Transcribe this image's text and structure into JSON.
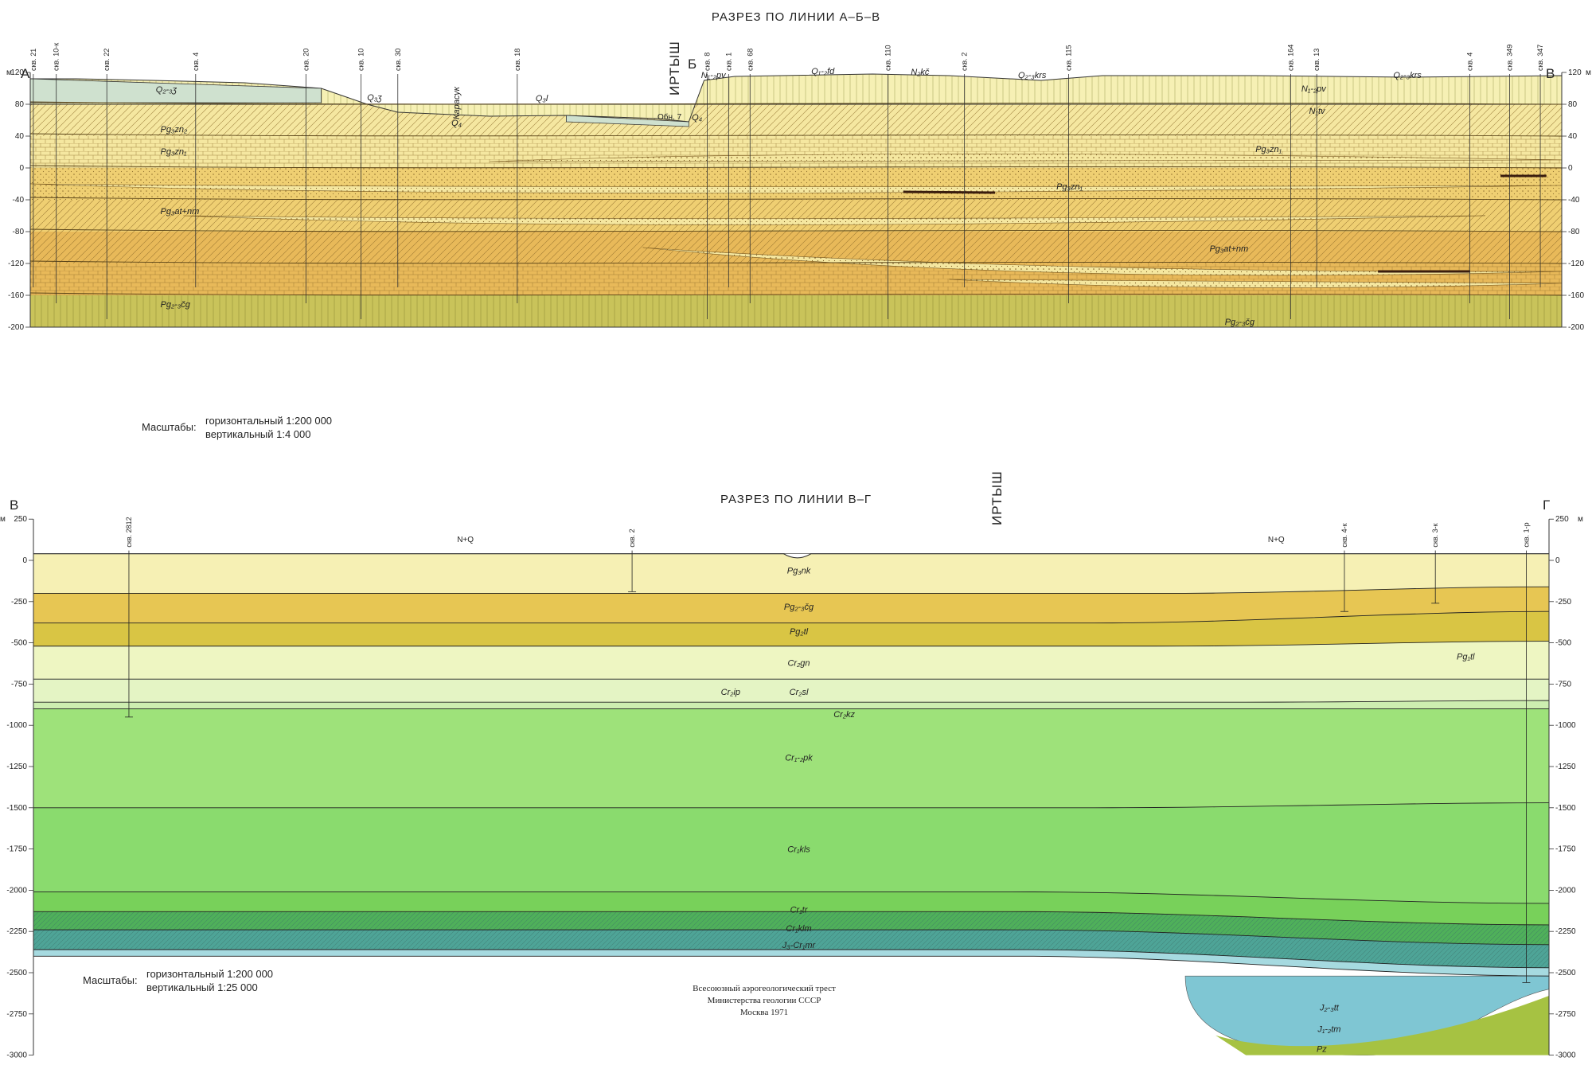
{
  "section1": {
    "title": "РАЗРЕЗ ПО ЛИНИИ А–Б–В",
    "corner_left": "А",
    "corner_mid": "Б",
    "corner_right": "В",
    "river": "ИРТЫШ",
    "karasuk": "Карасук",
    "outcrop": "Обн. 7",
    "unit_left": "м",
    "unit_right": "м",
    "ticks": [
      {
        "v": 120,
        "l": "120"
      },
      {
        "v": 80,
        "l": "80"
      },
      {
        "v": 40,
        "l": "40"
      },
      {
        "v": 0,
        "l": "0"
      },
      {
        "v": -40,
        "l": "-40"
      },
      {
        "v": -80,
        "l": "-80"
      },
      {
        "v": -120,
        "l": "-120"
      },
      {
        "v": -160,
        "l": "-160"
      },
      {
        "v": -200,
        "l": "-200"
      }
    ],
    "boreholes": [
      {
        "label": "скв. 21",
        "x": 0.2
      },
      {
        "label": "скв. 10-к",
        "x": 1.7
      },
      {
        "label": "скв. 22",
        "x": 5.0
      },
      {
        "label": "скв. 4",
        "x": 10.8
      },
      {
        "label": "скв. 20",
        "x": 18.0
      },
      {
        "label": "скв. 10",
        "x": 21.6
      },
      {
        "label": "скв. 30",
        "x": 24.0
      },
      {
        "label": "скв. 18",
        "x": 31.8
      },
      {
        "label": "скв. 8",
        "x": 44.2
      },
      {
        "label": "скв. 1",
        "x": 45.6
      },
      {
        "label": "скв. 68",
        "x": 47.0
      },
      {
        "label": "скв. 110",
        "x": 56.0
      },
      {
        "label": "скв. 2",
        "x": 61.0
      },
      {
        "label": "скв. 115",
        "x": 67.8
      },
      {
        "label": "скв. 164",
        "x": 82.3
      },
      {
        "label": "скв. 13",
        "x": 84.0
      },
      {
        "label": "скв. 4",
        "x": 94.0
      },
      {
        "label": "скв. 349",
        "x": 96.6
      },
      {
        "label": "скв. 347",
        "x": 98.6
      }
    ],
    "formations": [
      {
        "label": "Q₂-₃ʒ",
        "x": 8.2,
        "y": 95
      },
      {
        "label": "Q₃ʒ",
        "x": 22.0,
        "y": 85
      },
      {
        "label": "Q₃l",
        "x": 33.0,
        "y": 84
      },
      {
        "label": "Q₄",
        "x": 27.5,
        "y": 53
      },
      {
        "label": "Q₄",
        "x": 43.2,
        "y": 60
      },
      {
        "label": "N₁-₂pv",
        "x": 43.8,
        "y": 113
      },
      {
        "label": "Q₁-₂fd",
        "x": 51.0,
        "y": 118
      },
      {
        "label": "N₂kč",
        "x": 57.5,
        "y": 117
      },
      {
        "label": "Q₂-₃krs",
        "x": 64.5,
        "y": 113
      },
      {
        "label": "Q₂-₃krs",
        "x": 89.0,
        "y": 113
      },
      {
        "label": "N₁-₂pv",
        "x": 83.0,
        "y": 96
      },
      {
        "label": "N₁tv",
        "x": 83.5,
        "y": 68
      },
      {
        "label": "Pg₃zn₂",
        "x": 8.5,
        "y": 45
      },
      {
        "label": "Pg₃zn₁",
        "x": 8.5,
        "y": 17
      },
      {
        "label": "Pg₃zn₁",
        "x": 80.0,
        "y": 20
      },
      {
        "label": "Pg₃zn₁",
        "x": 67.0,
        "y": -27
      },
      {
        "label": "Pg₃at+nm",
        "x": 8.5,
        "y": -58
      },
      {
        "label": "Pg₃at+nm",
        "x": 77.0,
        "y": -105
      },
      {
        "label": "Pg₂-₃čg",
        "x": 8.5,
        "y": -175
      },
      {
        "label": "Pg₂-₃čg",
        "x": 78.0,
        "y": -197
      }
    ],
    "scale_label": "Масштабы:",
    "scale_h": "горизонтальный 1:200 000",
    "scale_v": "вертикальный 1:4 000"
  },
  "section2": {
    "title": "РАЗРЕЗ ПО ЛИНИИ В–Г",
    "corner_left": "В",
    "corner_right": "Г",
    "river": "ИРТЫШ",
    "unit_left": "м",
    "unit_right": "м",
    "ticks": [
      {
        "v": 250,
        "l": "250"
      },
      {
        "v": 0,
        "l": "0"
      },
      {
        "v": -250,
        "l": "-250"
      },
      {
        "v": -500,
        "l": "-500"
      },
      {
        "v": -750,
        "l": "-750"
      },
      {
        "v": -1000,
        "l": "-1000"
      },
      {
        "v": -1250,
        "l": "-1250"
      },
      {
        "v": -1500,
        "l": "-1500"
      },
      {
        "v": -1750,
        "l": "-1750"
      },
      {
        "v": -2000,
        "l": "-2000"
      },
      {
        "v": -2250,
        "l": "-2250"
      },
      {
        "v": -2500,
        "l": "-2500"
      },
      {
        "v": -2750,
        "l": "-2750"
      },
      {
        "v": -3000,
        "l": "-3000"
      }
    ],
    "boreholes": [
      {
        "label": "скв. 2812",
        "x": 6.3
      },
      {
        "label": "скв. 2",
        "x": 39.5
      },
      {
        "label": "скв. 4-к",
        "x": 86.5
      },
      {
        "label": "скв. 3-к",
        "x": 92.5
      },
      {
        "label": "скв. 1-р",
        "x": 98.5
      }
    ],
    "surface_labels": [
      {
        "label": "N+Q",
        "x": 28.5
      },
      {
        "label": "N+Q",
        "x": 82.0
      }
    ],
    "formations": [
      {
        "label": "Pg₃nk",
        "x": 50.5,
        "y": -80
      },
      {
        "label": "Pg₂-₃čg",
        "x": 50.5,
        "y": -300
      },
      {
        "label": "Pg₂tl",
        "x": 50.5,
        "y": -450
      },
      {
        "label": "Pg₁tl",
        "x": 94.5,
        "y": -600
      },
      {
        "label": "Cr₂gn",
        "x": 50.5,
        "y": -640
      },
      {
        "label": "Cr₂ip",
        "x": 46.0,
        "y": -815
      },
      {
        "label": "Cr₂sl",
        "x": 50.5,
        "y": -815
      },
      {
        "label": "Cr₂kz",
        "x": 53.5,
        "y": -950
      },
      {
        "label": "Cr₁-₂pk",
        "x": 50.5,
        "y": -1215
      },
      {
        "label": "Cr₁kls",
        "x": 50.5,
        "y": -1770
      },
      {
        "label": "Cr₁tr",
        "x": 50.5,
        "y": -2135
      },
      {
        "label": "Cr₁klm",
        "x": 50.5,
        "y": -2250
      },
      {
        "label": "J₃-Cr₁mr",
        "x": 50.5,
        "y": -2350
      },
      {
        "label": "J₂-₃tt",
        "x": 85.5,
        "y": -2730
      },
      {
        "label": "J₁-₂tm",
        "x": 85.5,
        "y": -2860
      },
      {
        "label": "Pz",
        "x": 85.0,
        "y": -2980
      }
    ],
    "scale_label": "Масштабы:",
    "scale_h": "горизонтальный 1:200 000",
    "scale_v": "вертикальный 1:25 000",
    "credit": [
      "Всесоюзный аэрогеологический трест",
      "Министерства геологии СССР",
      "Москва 1971"
    ]
  },
  "colors": {
    "sand_light": "#f5e7a0",
    "sand_mid": "#efcf72",
    "loam": "#e8b959",
    "clay_pale": "#dfe6b8",
    "olive": "#c9c35a",
    "quat": "#cfe1cf",
    "yellow_pale": "#f6f0b4",
    "green_1": "#eef6c2",
    "green_2": "#cdeeb0",
    "green_3": "#9ee27a",
    "green_4": "#78d15a",
    "green_5": "#4fb05a",
    "teal": "#4ea497",
    "blue_pale": "#a6dae0",
    "blue_mid": "#7fc6d3",
    "pz_green": "#a6c242"
  }
}
